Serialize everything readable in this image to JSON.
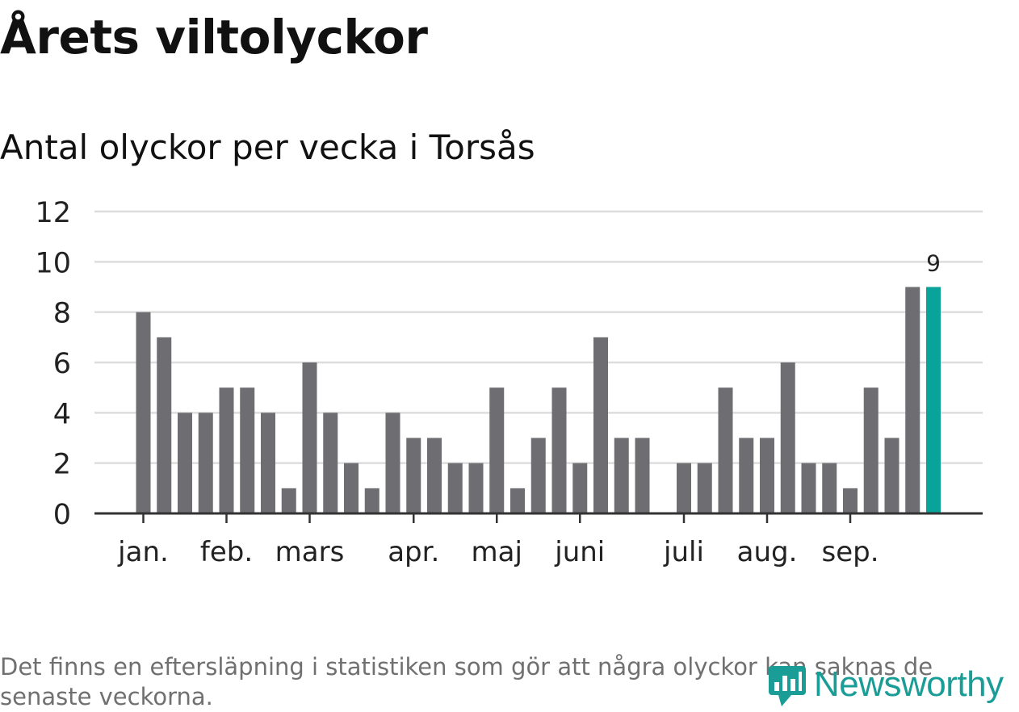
{
  "header": {
    "title": "Årets viltolyckor",
    "subtitle": "Antal olyckor per vecka i Torsås"
  },
  "footer": {
    "note": "Det finns en eftersläpning i statistiken som gör att några olyckor kan saknas de senaste veckorna.",
    "logo_text": "Newsworthy",
    "logo_icon": "newsworthy-logo-icon"
  },
  "colors": {
    "bar": "#6e6d72",
    "highlight": "#0aa39a",
    "grid": "#dddddd",
    "axis": "#333333",
    "text": "#222222"
  },
  "chart_data": {
    "type": "bar",
    "title": "Antal olyckor per vecka i Torsås",
    "xlabel": "",
    "ylabel": "",
    "ylim": [
      0,
      12
    ],
    "yticks": [
      0,
      2,
      4,
      6,
      8,
      10,
      12
    ],
    "grid": true,
    "weeks": [
      1,
      2,
      3,
      4,
      5,
      6,
      7,
      8,
      9,
      10,
      11,
      12,
      13,
      14,
      15,
      16,
      17,
      18,
      19,
      20,
      21,
      22,
      23,
      24,
      25,
      26,
      27,
      28,
      29,
      30,
      31,
      32,
      33,
      34,
      35,
      36,
      37,
      38,
      39
    ],
    "values": [
      8,
      7,
      4,
      4,
      5,
      5,
      4,
      1,
      6,
      4,
      2,
      1,
      4,
      3,
      3,
      2,
      2,
      5,
      1,
      3,
      5,
      2,
      7,
      3,
      3,
      0,
      2,
      2,
      5,
      3,
      3,
      6,
      2,
      2,
      1,
      5,
      3,
      9,
      9
    ],
    "highlight_index": 38,
    "highlight_label": "9",
    "month_ticks": [
      {
        "label": "jan.",
        "week": 1
      },
      {
        "label": "feb.",
        "week": 5
      },
      {
        "label": "mars",
        "week": 9
      },
      {
        "label": "apr.",
        "week": 14
      },
      {
        "label": "maj",
        "week": 18
      },
      {
        "label": "juni",
        "week": 22
      },
      {
        "label": "juli",
        "week": 27
      },
      {
        "label": "aug.",
        "week": 31
      },
      {
        "label": "sep.",
        "week": 35
      }
    ]
  }
}
